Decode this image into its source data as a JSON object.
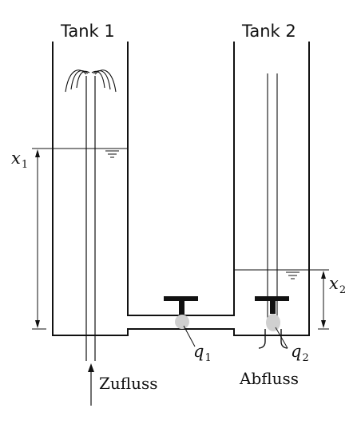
{
  "labels": {
    "tank1": "Tank 1",
    "tank2": "Tank 2",
    "x1": {
      "base": "x",
      "sub": "1"
    },
    "x2": {
      "base": "x",
      "sub": "2"
    },
    "q1": {
      "base": "q",
      "sub": "1"
    },
    "q2": {
      "base": "q",
      "sub": "2"
    },
    "inflow": "Zufluss",
    "outflow": "Abfluss"
  },
  "colors": {
    "line": "#111111",
    "valve_ball": "#d0d0d0",
    "water_surface": "#111111"
  }
}
